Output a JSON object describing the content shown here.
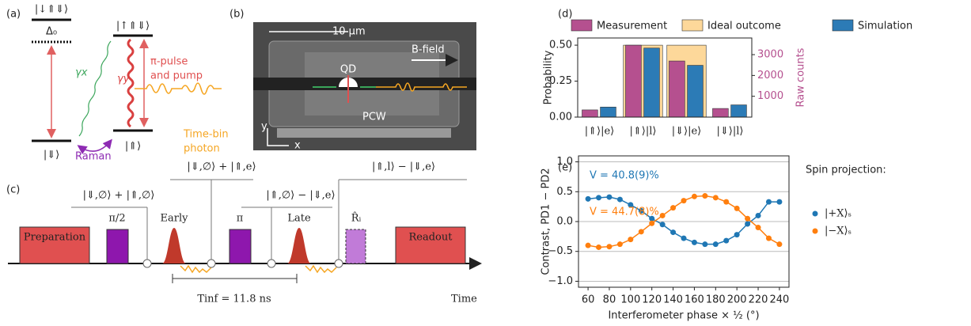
{
  "panels": {
    "a": {
      "label": "(a)",
      "top_left": "|↓⇑⇓⟩",
      "delta": "Δ₀",
      "top_right": "|↑⇑⇓⟩",
      "gamma_x": "γx",
      "gamma_y": "γy",
      "pump": [
        "π-pulse",
        "and pump"
      ],
      "photon": [
        "Time-bin",
        "photon"
      ],
      "ground_left": "|⇓⟩",
      "ground_right": "|⇑⟩",
      "raman": "Raman"
    },
    "b": {
      "label": "(b)",
      "scale": "10 μm",
      "qd": "QD",
      "field": "B-field",
      "pcw": "PCW",
      "axis_y": "y",
      "axis_x": "x"
    },
    "c": {
      "label": "(c)",
      "states": [
        "|⇓,∅⟩ + |⇑,∅⟩",
        "|⇓,∅⟩ + |⇑,e⟩",
        "|⇑,∅⟩ − |⇓,e⟩",
        "|⇑,l⟩ − |⇓,e⟩"
      ],
      "pulses": [
        "Preparation",
        "π/2",
        "Early",
        "π",
        "Late",
        "R̂ᵢ",
        "Readout"
      ],
      "time": "Time",
      "interval": "Tinf = 11.8 ns"
    }
  },
  "chart_data": [
    {
      "type": "bar",
      "panel_label": "(d)",
      "ylabel": "Probability",
      "y2label": "Raw counts",
      "y2color": "#b5508f",
      "categories": [
        "|⇑⟩|e⟩",
        "|⇑⟩|l⟩",
        "|⇓⟩|e⟩",
        "|⇓⟩|l⟩"
      ],
      "series": [
        {
          "name": "Measurement",
          "color": "#b5508f",
          "values": [
            0.05,
            0.5,
            0.39,
            0.06
          ]
        },
        {
          "name": "Ideal outcome",
          "color": "#fdd89a",
          "values": [
            0,
            0.5,
            0.5,
            0
          ]
        },
        {
          "name": "Simulation",
          "color": "#2c7bb6",
          "values": [
            0.07,
            0.48,
            0.36,
            0.085
          ]
        }
      ],
      "ylim": [
        0,
        0.55
      ],
      "yticks": [
        {
          "value": 0,
          "label": "0.00"
        },
        {
          "value": 0.25,
          "label": "0.25"
        },
        {
          "value": 0.5,
          "label": "0.50"
        }
      ],
      "y2lim": [
        0,
        3800
      ],
      "y2ticks": [
        1000,
        2000,
        3000
      ]
    },
    {
      "type": "line",
      "panel_label": "(e)",
      "xlabel": "Interferometer phase × ½ (°)",
      "ylabel": "Contrast, PD1 − PD2",
      "x": [
        60,
        70,
        80,
        90,
        100,
        110,
        120,
        130,
        140,
        150,
        160,
        170,
        180,
        190,
        200,
        210,
        220,
        230,
        240
      ],
      "series": [
        {
          "name": "|+X⟩ₛ",
          "color": "#1f77b4",
          "values": [
            0.38,
            0.4,
            0.41,
            0.37,
            0.28,
            0.18,
            0.05,
            -0.05,
            -0.18,
            -0.28,
            -0.35,
            -0.38,
            -0.38,
            -0.32,
            -0.22,
            -0.04,
            0.1,
            0.33,
            0.33
          ]
        },
        {
          "name": "|−X⟩ₛ",
          "color": "#ff7f0e",
          "values": [
            -0.4,
            -0.43,
            -0.42,
            -0.38,
            -0.3,
            -0.17,
            -0.03,
            0.1,
            0.23,
            0.35,
            0.42,
            0.43,
            0.4,
            0.33,
            0.22,
            0.05,
            -0.1,
            -0.28,
            -0.38
          ]
        }
      ],
      "xlim": [
        51,
        249
      ],
      "xticks": [
        60,
        80,
        100,
        120,
        140,
        160,
        180,
        200,
        220,
        240
      ],
      "ylim": [
        -1.1,
        1.1
      ],
      "yticks": [
        {
          "value": -1,
          "label": "−1.0"
        },
        {
          "value": -0.5,
          "label": "−0.5"
        },
        {
          "value": 0,
          "label": "0.0"
        },
        {
          "value": 0.5,
          "label": "0.5"
        },
        {
          "value": 1,
          "label": "1.0"
        }
      ],
      "grid": true,
      "legend_title": "Spin projection:",
      "annotations": [
        {
          "text": "V = 40.8(9)%",
          "color": "#1f77b4"
        },
        {
          "text": "V = 44.7(8)%",
          "color": "#ff7f0e"
        }
      ]
    }
  ]
}
